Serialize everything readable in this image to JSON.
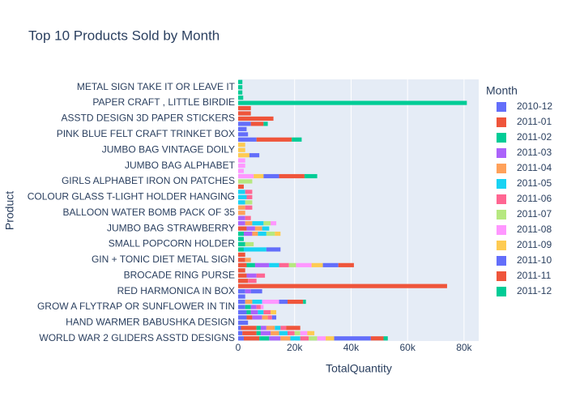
{
  "chart_data": {
    "type": "stacked-bar-horizontal",
    "title": "Top 10 Products Sold by Month",
    "x_label": "TotalQuantity",
    "y_label": "Product",
    "legend_title": "Month",
    "legend_position": "right",
    "grid": true,
    "xlim": [
      0,
      85200
    ],
    "xticks": [
      0,
      {
        "value": 20000,
        "label": "20k"
      },
      {
        "value": 40000,
        "label": "40k"
      },
      {
        "value": 60000,
        "label": "60k"
      },
      {
        "value": 80000,
        "label": "80k"
      }
    ],
    "categories": [
      "WORLD WAR 2 GLIDERS ASSTD DESIGNS",
      null,
      null,
      "HAND WARMER BABUSHKA DESIGN",
      null,
      null,
      "GROW A FLYTRAP OR SUNFLOWER IN TIN",
      null,
      null,
      "RED  HARMONICA IN BOX",
      null,
      null,
      "BROCADE RING PURSE",
      null,
      null,
      "GIN + TONIC DIET METAL SIGN",
      null,
      null,
      "SMALL POPCORN HOLDER",
      null,
      null,
      "JUMBO BAG STRAWBERRY",
      null,
      null,
      "BALLOON WATER BOMB PACK OF 35",
      null,
      null,
      "COLOUR GLASS T-LIGHT HOLDER HANGING",
      null,
      null,
      "GIRLS ALPHABET IRON ON PATCHES",
      null,
      null,
      "JUMBO BAG ALPHABET",
      null,
      null,
      "JUMBO BAG VINTAGE DOILY",
      null,
      null,
      "PINK BLUE FELT CRAFT TRINKET BOX",
      null,
      null,
      "ASSTD DESIGN 3D PAPER STICKERS",
      null,
      null,
      "PAPER CRAFT , LITTLE BIRDIE",
      null,
      null,
      "METAL SIGN TAKE IT OR LEAVE IT",
      null
    ],
    "series": [
      {
        "name": "2010-12",
        "color": "#636efa",
        "values": [
          2000,
          1500,
          1000,
          3500,
          3000,
          3000,
          2500,
          2500,
          2500,
          2500,
          null,
          null,
          null,
          null,
          null,
          null,
          null,
          null,
          null,
          null,
          null,
          null,
          null,
          null,
          null,
          null,
          null,
          null,
          null,
          null,
          null,
          null,
          null,
          null,
          null,
          null,
          null,
          null,
          null,
          null,
          null,
          null,
          null,
          null,
          null,
          null,
          null,
          null,
          null,
          null
        ]
      },
      {
        "name": "2011-01",
        "color": "#EF553B",
        "values": [
          5500,
          5000,
          5500,
          null,
          2000,
          null,
          null,
          null,
          null,
          null,
          74000,
          3500,
          3000,
          2500,
          3000,
          2500,
          2500,
          null,
          null,
          null,
          null,
          3000,
          null,
          null,
          null,
          null,
          null,
          null,
          null,
          2000,
          null,
          null,
          null,
          null,
          null,
          null,
          null,
          null,
          null,
          null,
          null,
          null,
          null,
          null,
          null,
          null,
          null,
          null,
          null,
          null
        ]
      },
      {
        "name": "2011-02",
        "color": "#00cc96",
        "values": [
          3500,
          1500,
          1500,
          null,
          null,
          1500,
          2000,
          null,
          null,
          null,
          null,
          null,
          null,
          null,
          3000,
          null,
          null,
          2000,
          2500,
          2000,
          2000,
          null,
          null,
          null,
          null,
          null,
          null,
          null,
          null,
          null,
          null,
          null,
          null,
          null,
          null,
          null,
          null,
          null,
          null,
          null,
          null,
          null,
          null,
          null,
          null,
          null,
          null,
          null,
          null,
          null
        ]
      },
      {
        "name": "2011-03",
        "color": "#ab63fa",
        "values": [
          4000,
          3500,
          2000,
          null,
          3500,
          2500,
          2000,
          null,
          null,
          2000,
          null,
          null,
          3500,
          null,
          5000,
          null,
          null,
          null,
          null,
          null,
          3000,
          3000,
          2500,
          2500,
          null,
          null,
          null,
          null,
          null,
          null,
          null,
          null,
          null,
          null,
          null,
          null,
          null,
          null,
          null,
          null,
          null,
          null,
          null,
          null,
          null,
          null,
          null,
          null,
          null,
          null
        ]
      },
      {
        "name": "2011-04",
        "color": "#FFA15A",
        "values": [
          3500,
          3000,
          3000,
          null,
          2000,
          null,
          null,
          2500,
          null,
          null,
          null,
          null,
          null,
          null,
          null,
          2000,
          null,
          null,
          null,
          null,
          2000,
          2500,
          2500,
          null,
          2500,
          2500,
          null,
          null,
          null,
          null,
          null,
          null,
          null,
          null,
          null,
          null,
          null,
          null,
          null,
          null,
          null,
          null,
          null,
          null,
          null,
          null,
          null,
          null,
          null,
          null
        ]
      },
      {
        "name": "2011-05",
        "color": "#19d3f3",
        "values": [
          3500,
          3000,
          2000,
          null,
          null,
          2000,
          null,
          3500,
          null,
          null,
          null,
          null,
          null,
          null,
          3500,
          null,
          null,
          8000,
          null,
          null,
          3000,
          2500,
          4000,
          null,
          null,
          null,
          2500,
          3000,
          2500,
          null,
          null,
          null,
          null,
          null,
          null,
          null,
          null,
          null,
          null,
          null,
          null,
          null,
          null,
          null,
          null,
          null,
          null,
          null,
          null,
          null
        ]
      },
      {
        "name": "2011-06",
        "color": "#FF6692",
        "values": [
          3000,
          2500,
          2000,
          null,
          1500,
          2500,
          1500,
          null,
          null,
          null,
          null,
          3000,
          3000,
          null,
          3500,
          null,
          null,
          null,
          null,
          null,
          null,
          null,
          null,
          2000,
          null,
          2500,
          null,
          2000,
          2500,
          null,
          null,
          null,
          null,
          null,
          null,
          null,
          null,
          null,
          null,
          null,
          null,
          null,
          null,
          null,
          null,
          null,
          null,
          null,
          null,
          null
        ]
      },
      {
        "name": "2011-07",
        "color": "#B6E880",
        "values": [
          3000,
          2000,
          null,
          null,
          null,
          null,
          null,
          null,
          null,
          null,
          null,
          null,
          null,
          null,
          2500,
          null,
          null,
          null,
          3000,
          null,
          3000,
          null,
          2500,
          null,
          null,
          null,
          2500,
          null,
          null,
          null,
          5000,
          null,
          null,
          null,
          null,
          null,
          null,
          null,
          null,
          null,
          null,
          null,
          null,
          null,
          null,
          null,
          null,
          null,
          null,
          null
        ]
      },
      {
        "name": "2011-08",
        "color": "#FF97FF",
        "values": [
          3000,
          2500,
          null,
          null,
          null,
          null,
          1000,
          6000,
          null,
          null,
          null,
          null,
          null,
          null,
          5500,
          null,
          null,
          null,
          null,
          null,
          null,
          null,
          2000,
          null,
          null,
          null,
          null,
          null,
          null,
          null,
          null,
          5500,
          2000,
          2500,
          2500,
          null,
          null,
          null,
          null,
          null,
          null,
          null,
          null,
          null,
          null,
          null,
          null,
          null,
          null,
          null
        ]
      },
      {
        "name": "2011-09",
        "color": "#FECB52",
        "values": [
          3000,
          2500,
          null,
          null,
          null,
          2000,
          null,
          null,
          null,
          null,
          null,
          null,
          null,
          null,
          4000,
          null,
          null,
          null,
          null,
          null,
          2000,
          null,
          null,
          null,
          null,
          null,
          null,
          null,
          null,
          null,
          null,
          3500,
          null,
          null,
          null,
          4000,
          2500,
          2500,
          null,
          null,
          null,
          null,
          null,
          null,
          null,
          null,
          null,
          null,
          null,
          null
        ]
      },
      {
        "name": "2011-10",
        "color": "#636efa",
        "values": [
          13000,
          null,
          null,
          null,
          1500,
          null,
          null,
          3000,
          null,
          4000,
          null,
          null,
          null,
          null,
          5500,
          null,
          null,
          5000,
          null,
          null,
          null,
          null,
          null,
          null,
          null,
          null,
          null,
          null,
          null,
          null,
          null,
          5500,
          null,
          null,
          null,
          3500,
          null,
          null,
          6500,
          3500,
          3000,
          4500,
          null,
          null,
          null,
          null,
          null,
          null,
          null,
          null
        ]
      },
      {
        "name": "2011-11",
        "color": "#EF553B",
        "values": [
          4500,
          null,
          5000,
          null,
          null,
          null,
          null,
          5500,
          null,
          null,
          null,
          null,
          null,
          null,
          5500,
          null,
          null,
          null,
          null,
          null,
          null,
          null,
          null,
          null,
          null,
          null,
          null,
          null,
          null,
          null,
          null,
          9000,
          null,
          null,
          null,
          null,
          null,
          null,
          12500,
          null,
          null,
          4500,
          12500,
          4500,
          4500,
          null,
          null,
          null,
          null,
          null
        ]
      },
      {
        "name": "2011-12",
        "color": "#00cc96",
        "values": [
          1500,
          null,
          null,
          null,
          null,
          null,
          null,
          1000,
          null,
          null,
          null,
          null,
          null,
          null,
          null,
          null,
          null,
          null,
          null,
          null,
          null,
          null,
          null,
          null,
          null,
          null,
          null,
          null,
          null,
          null,
          null,
          4500,
          null,
          null,
          null,
          null,
          null,
          null,
          3500,
          null,
          null,
          1500,
          null,
          null,
          null,
          81000,
          1800,
          1500,
          1500,
          1500
        ]
      }
    ]
  }
}
